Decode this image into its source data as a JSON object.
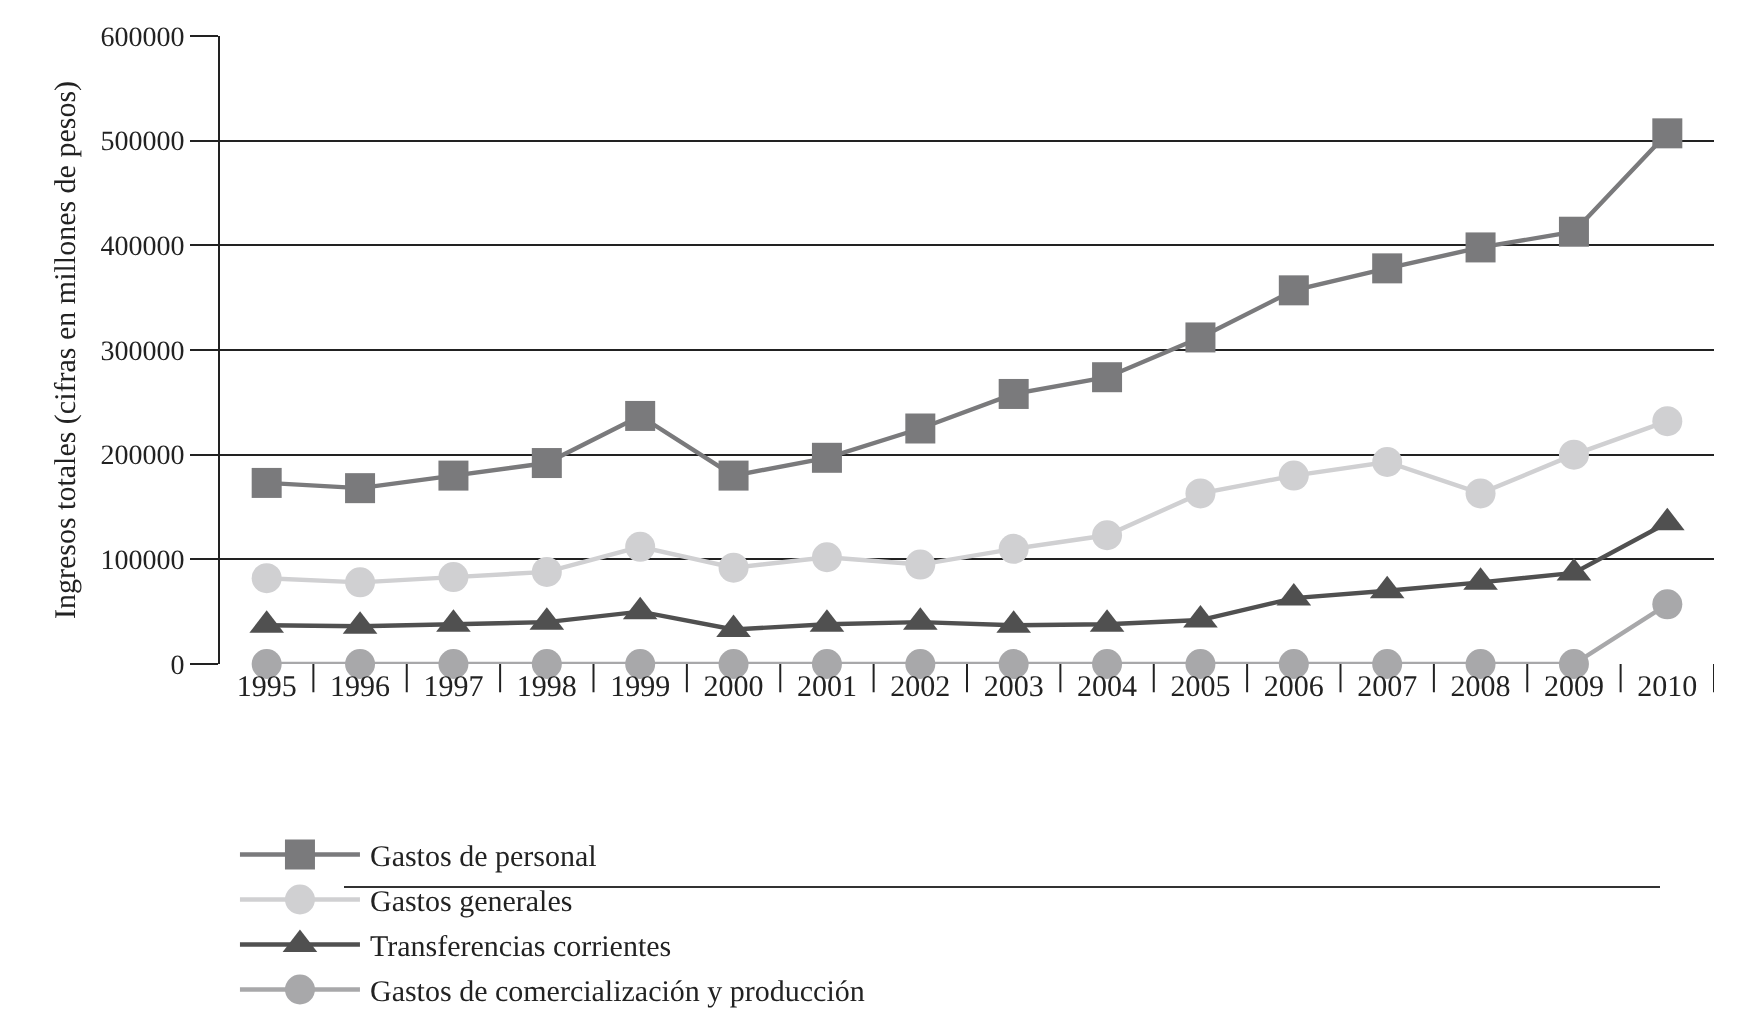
{
  "chart_data": {
    "type": "line",
    "ylabel": "Ingresos totales (cifras en millones de pesos)",
    "categories": [
      "1995",
      "1996",
      "1997",
      "1998",
      "1999",
      "2000",
      "2001",
      "2002",
      "2003",
      "2004",
      "2005",
      "2006",
      "2007",
      "2008",
      "2009",
      "2010"
    ],
    "series": [
      {
        "name": "Gastos de personal",
        "color": "#7a7a7c",
        "marker": "square",
        "values": [
          173000,
          168000,
          180000,
          192000,
          237000,
          180000,
          197000,
          225000,
          258000,
          274000,
          312000,
          357000,
          378000,
          398000,
          413000,
          507000
        ]
      },
      {
        "name": "Gastos generales",
        "color": "#d0d0d2",
        "marker": "circle",
        "values": [
          82000,
          78000,
          83000,
          88000,
          112000,
          92000,
          102000,
          95000,
          110000,
          123000,
          163000,
          180000,
          193000,
          163000,
          200000,
          232000
        ]
      },
      {
        "name": "Transferencias corrientes",
        "color": "#505050",
        "marker": "triangle",
        "values": [
          37000,
          36000,
          38000,
          40000,
          50000,
          33000,
          38000,
          40000,
          37000,
          38000,
          42000,
          63000,
          70000,
          78000,
          87000,
          135000
        ]
      },
      {
        "name": "Gastos de comercialización y producción",
        "color": "#a8a8aa",
        "marker": "circle",
        "values": [
          0,
          0,
          0,
          0,
          0,
          0,
          0,
          0,
          0,
          0,
          0,
          0,
          0,
          0,
          0,
          57000
        ]
      }
    ],
    "ylim": [
      0,
      600000
    ],
    "yticks": [
      0,
      100000,
      200000,
      300000,
      400000,
      500000,
      600000
    ],
    "grid": "y",
    "legend": "bottom",
    "line_style": "solid"
  }
}
